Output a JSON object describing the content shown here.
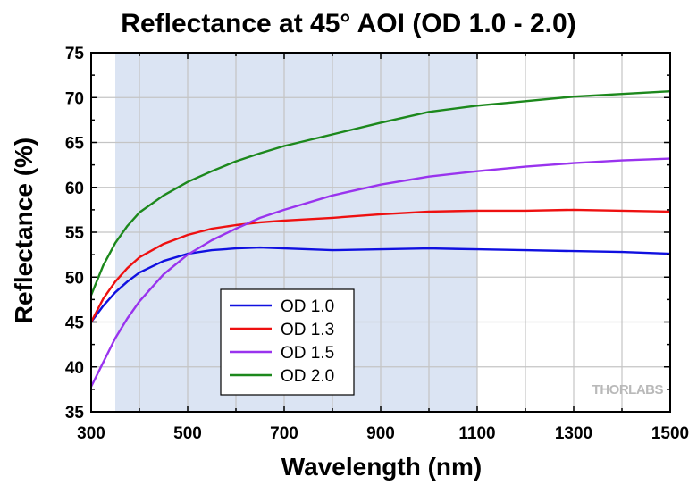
{
  "chart_data": {
    "type": "line",
    "title": "Reflectance at 45° AOI (OD 1.0 - 2.0)",
    "xlabel": "Wavelength (nm)",
    "ylabel": "Reflectance (%)",
    "xlim": [
      300,
      1500
    ],
    "ylim": [
      35,
      75
    ],
    "xticks": [
      300,
      500,
      700,
      900,
      1100,
      1300,
      1500
    ],
    "yticks": [
      35,
      40,
      45,
      50,
      55,
      60,
      65,
      70,
      75
    ],
    "grid": true,
    "legend_position": "lower-left",
    "shaded_region": {
      "x_start": 350,
      "x_end": 1100,
      "color": "#dbe4f3"
    },
    "series": [
      {
        "name": "OD 1.0",
        "color": "#1010e0",
        "x": [
          300,
          325,
          350,
          375,
          400,
          450,
          500,
          550,
          600,
          650,
          700,
          800,
          900,
          1000,
          1100,
          1200,
          1300,
          1400,
          1500
        ],
        "y": [
          45.0,
          46.8,
          48.3,
          49.5,
          50.5,
          51.8,
          52.6,
          53.0,
          53.2,
          53.3,
          53.2,
          53.0,
          53.1,
          53.2,
          53.1,
          53.0,
          52.9,
          52.8,
          52.6
        ]
      },
      {
        "name": "OD 1.3",
        "color": "#ee1010",
        "x": [
          300,
          325,
          350,
          375,
          400,
          450,
          500,
          550,
          600,
          650,
          700,
          800,
          900,
          1000,
          1100,
          1200,
          1300,
          1400,
          1500
        ],
        "y": [
          45.0,
          47.6,
          49.5,
          51.0,
          52.2,
          53.7,
          54.7,
          55.4,
          55.8,
          56.1,
          56.3,
          56.6,
          57.0,
          57.3,
          57.4,
          57.4,
          57.5,
          57.4,
          57.3
        ]
      },
      {
        "name": "OD 1.5",
        "color": "#9933ee",
        "x": [
          300,
          325,
          350,
          375,
          400,
          450,
          500,
          550,
          600,
          650,
          700,
          800,
          900,
          1000,
          1100,
          1200,
          1300,
          1400,
          1500
        ],
        "y": [
          37.8,
          40.5,
          43.2,
          45.4,
          47.3,
          50.3,
          52.5,
          54.1,
          55.4,
          56.6,
          57.5,
          59.1,
          60.3,
          61.2,
          61.8,
          62.3,
          62.7,
          63.0,
          63.2
        ]
      },
      {
        "name": "OD 2.0",
        "color": "#1c881c",
        "x": [
          300,
          325,
          350,
          375,
          400,
          450,
          500,
          550,
          600,
          650,
          700,
          800,
          900,
          1000,
          1100,
          1200,
          1300,
          1400,
          1500
        ],
        "y": [
          48.0,
          51.3,
          53.8,
          55.7,
          57.2,
          59.1,
          60.6,
          61.8,
          62.9,
          63.8,
          64.6,
          65.9,
          67.2,
          68.4,
          69.1,
          69.6,
          70.1,
          70.4,
          70.7
        ]
      }
    ]
  },
  "logo": {
    "text": "THORLABS"
  }
}
